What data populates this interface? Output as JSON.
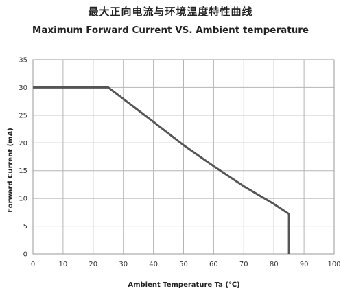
{
  "chart_data": {
    "type": "line",
    "title": "最大正向电流与环境温度特性曲线",
    "subtitle": "Maximum Forward Current VS. Ambient temperature",
    "xlabel": "Ambient Temperature Ta (℃)",
    "ylabel": "Forward Current (mA)",
    "xlim": [
      0,
      100
    ],
    "ylim": [
      0,
      35
    ],
    "xticks": [
      0,
      10,
      20,
      30,
      40,
      50,
      60,
      70,
      80,
      90,
      100
    ],
    "yticks": [
      0,
      5,
      10,
      15,
      20,
      25,
      30,
      35
    ],
    "grid": true,
    "series": [
      {
        "x": [
          0,
          25,
          40,
          50,
          60,
          70,
          80,
          85,
          85
        ],
        "y": [
          30,
          30,
          23.8,
          19.6,
          15.8,
          12.2,
          9.0,
          7.2,
          0
        ],
        "color": "#555555"
      }
    ]
  }
}
